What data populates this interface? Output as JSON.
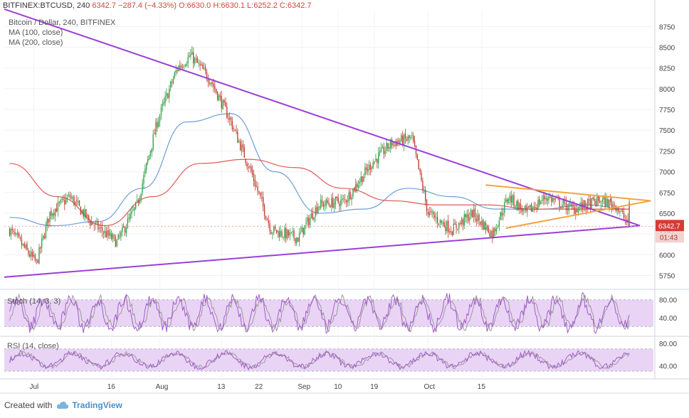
{
  "header": {
    "symbol": "BITFINEX:BTCUSD, 240",
    "ohlc": "6342.7  −287.4 (−4.33%)  O:6630.0  H:6630.1  L:6252.2  C:6342.7",
    "title": "Bitcoin / Dollar, 240, BITFINEX",
    "ma100": "MA (100, close)",
    "ma200": "MA (200, close)"
  },
  "price_tag": "6342.7",
  "time_tag": "01:43",
  "stoch_label": "Stoch (14, 3, 3)",
  "rsi_label": "RSI (14, close)",
  "footer": {
    "created_with": "Created with",
    "brand": "TradingView"
  },
  "colors": {
    "up": "#2f9e44",
    "down": "#c0392b",
    "ma100": "#6d9ed6",
    "ma200": "#e05a56",
    "purple": "#9b3fd6",
    "orange": "#f4a340",
    "osc_line": "#a35cc9",
    "band": "#e9d4f5"
  },
  "chart_data": [
    {
      "type": "candlestick",
      "title": "Bitcoin / Dollar, 240, BITFINEX",
      "x_tick_labels": [
        "Jul",
        "16",
        "Aug",
        "13",
        "22",
        "Sep",
        "10",
        "19",
        "Oct",
        "15"
      ],
      "y_ticks": [
        5750,
        6000,
        6250,
        6500,
        6750,
        7000,
        7250,
        7500,
        7750,
        8000,
        8250,
        8500,
        8750
      ],
      "ylim": [
        5600,
        8950
      ],
      "anchors": [
        {
          "t": 0,
          "p": 6300
        },
        {
          "t": 20,
          "p": 5900
        },
        {
          "t": 30,
          "p": 6500
        },
        {
          "t": 45,
          "p": 6700
        },
        {
          "t": 60,
          "p": 6400
        },
        {
          "t": 80,
          "p": 6150
        },
        {
          "t": 95,
          "p": 6600
        },
        {
          "t": 110,
          "p": 7600
        },
        {
          "t": 125,
          "p": 8250
        },
        {
          "t": 135,
          "p": 8400
        },
        {
          "t": 150,
          "p": 8100
        },
        {
          "t": 165,
          "p": 7600
        },
        {
          "t": 180,
          "p": 7000
        },
        {
          "t": 195,
          "p": 6300
        },
        {
          "t": 215,
          "p": 6200
        },
        {
          "t": 230,
          "p": 6600
        },
        {
          "t": 250,
          "p": 6650
        },
        {
          "t": 270,
          "p": 7100
        },
        {
          "t": 285,
          "p": 7350
        },
        {
          "t": 300,
          "p": 7400
        },
        {
          "t": 312,
          "p": 6500
        },
        {
          "t": 330,
          "p": 6300
        },
        {
          "t": 345,
          "p": 6500
        },
        {
          "t": 360,
          "p": 6250
        },
        {
          "t": 372,
          "p": 6700
        },
        {
          "t": 385,
          "p": 6500
        },
        {
          "t": 400,
          "p": 6700
        },
        {
          "t": 420,
          "p": 6550
        },
        {
          "t": 440,
          "p": 6650
        },
        {
          "t": 452,
          "p": 6600
        },
        {
          "t": 462,
          "p": 6342.7
        }
      ],
      "last_close": 6342.7,
      "series": [
        {
          "name": "MA (100, close)",
          "values": [
            6450,
            6350,
            6400,
            6800,
            7600,
            7700,
            7000,
            6500,
            6550,
            6800,
            6700,
            6550,
            6550,
            6600,
            6550
          ]
        },
        {
          "name": "MA (200, close)",
          "values": [
            7100,
            6700,
            6350,
            6700,
            7100,
            7150,
            7050,
            6800,
            6650,
            6600,
            6600,
            6550,
            6550,
            6550
          ]
        }
      ],
      "trendlines": [
        {
          "name": "purple-upper",
          "from": [
            -4,
            8960
          ],
          "to": [
            470,
            6350
          ]
        },
        {
          "name": "purple-lower",
          "from": [
            -4,
            5730
          ],
          "to": [
            470,
            6350
          ]
        },
        {
          "name": "orange-upper",
          "from": [
            355,
            6840
          ],
          "to": [
            478,
            6650
          ]
        },
        {
          "name": "orange-lower",
          "from": [
            370,
            6320
          ],
          "to": [
            478,
            6650
          ]
        }
      ]
    },
    {
      "type": "line",
      "name": "Stoch (14, 3, 3)",
      "y_ticks": [
        40,
        80
      ],
      "ylim": [
        0,
        100
      ],
      "band": [
        20,
        80
      ]
    },
    {
      "type": "line",
      "name": "RSI (14, close)",
      "y_ticks": [
        40,
        80
      ],
      "ylim": [
        20,
        90
      ],
      "band": [
        30,
        70
      ]
    }
  ]
}
